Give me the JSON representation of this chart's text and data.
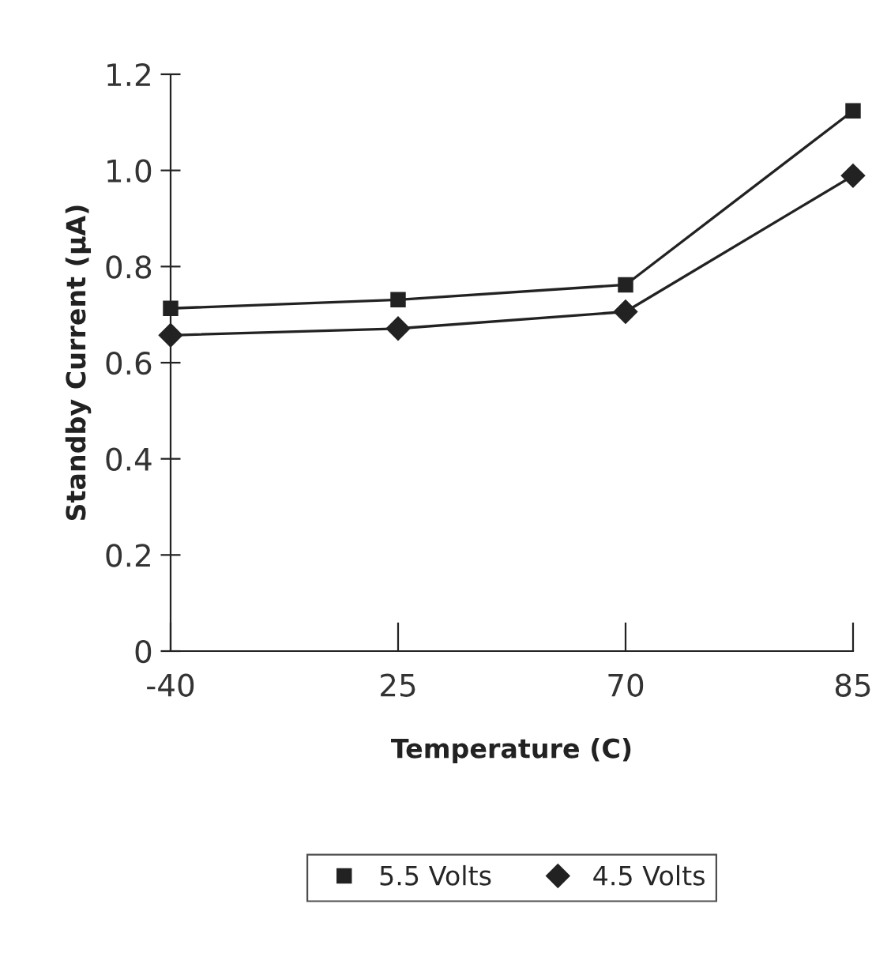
{
  "chart_data": {
    "type": "line",
    "xlabel": "Temperature (C)",
    "ylabel": "Standby Current (µA)",
    "categories": [
      "-40",
      "25",
      "70",
      "85"
    ],
    "series": [
      {
        "name": "5.5 Volts",
        "color": "#222222",
        "marker": "square",
        "values": [
          0.713,
          0.731,
          0.762,
          1.124
        ]
      },
      {
        "name": "4.5 Volts",
        "color": "#222222",
        "marker": "diamond",
        "values": [
          0.657,
          0.671,
          0.706,
          0.989
        ]
      }
    ],
    "ylim": [
      0,
      1.2
    ],
    "yticks": [
      0,
      0.2,
      0.4,
      0.6,
      0.8,
      {
        "value": 1,
        "label": "1.0"
      },
      1.2
    ],
    "grid": false,
    "legend": "bottom",
    "line_style": "solid"
  }
}
